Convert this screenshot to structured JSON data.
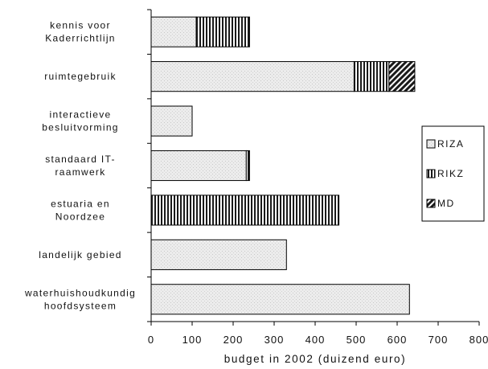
{
  "chart_data": {
    "type": "bar",
    "orientation": "horizontal",
    "stacked": true,
    "categories": [
      [
        "kennis voor",
        "Kaderrichtlijn"
      ],
      [
        "ruimtegebruik"
      ],
      [
        "interactieve",
        "besluitvorming"
      ],
      [
        "standaard IT-",
        "raamwerk"
      ],
      [
        "estuaria en",
        "Noordzee"
      ],
      [
        "landelijk gebied"
      ],
      [
        "waterhuishoudkundig",
        "hoofdsysteem"
      ]
    ],
    "series": [
      {
        "name": "RIZA",
        "values": [
          110,
          495,
          100,
          232,
          0,
          330,
          630
        ]
      },
      {
        "name": "RIKZ",
        "values": [
          130,
          85,
          0,
          8,
          458,
          0,
          0
        ]
      },
      {
        "name": "MD",
        "values": [
          0,
          63,
          0,
          0,
          0,
          0,
          0
        ]
      }
    ],
    "xlabel": "budget in 2002 (duizend euro)",
    "xlim": [
      0,
      800
    ],
    "xticks": [
      "0",
      "100",
      "200",
      "300",
      "400",
      "500",
      "600",
      "700",
      "800"
    ],
    "grid": false,
    "legend_position": "right",
    "colors": {
      "RIZA": "#f2f2f2",
      "RIKZ": "#1a1a1a",
      "MD": "#1a1a1a"
    }
  }
}
